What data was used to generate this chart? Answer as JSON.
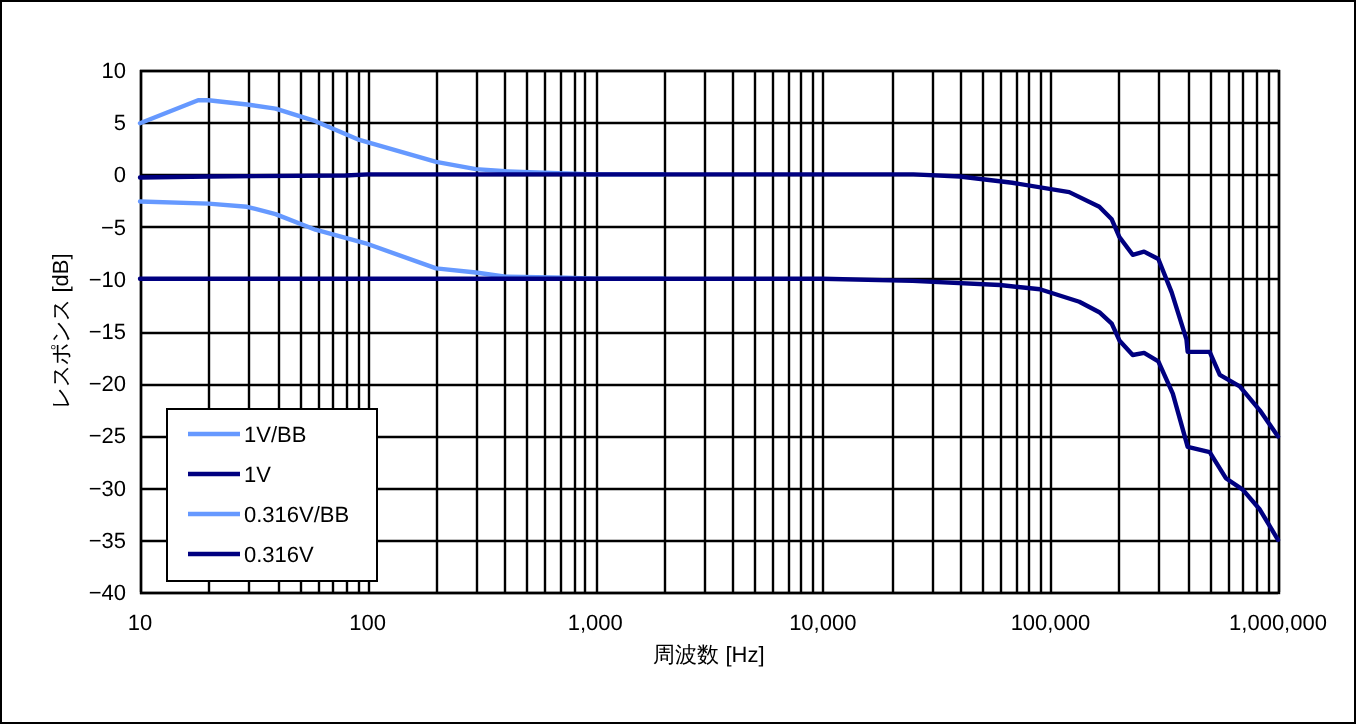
{
  "chart_data": {
    "type": "line",
    "xlabel": "周波数 [Hz]",
    "ylabel": "レスポンス [dB]",
    "log": "x",
    "grid": true,
    "legend": "bottom left",
    "line_style": "solid",
    "marker": "none",
    "xlim": [
      10,
      1000000
    ],
    "ylim": [
      -40,
      10
    ],
    "xticks": [
      10,
      100,
      {
        "value": 1000,
        "label": "1,000"
      },
      {
        "value": 10000,
        "label": "10,000"
      },
      {
        "value": 100000,
        "label": "100,000"
      },
      {
        "value": 1000000,
        "label": "1,000,000"
      }
    ],
    "yticks": [
      -40,
      -35,
      -30,
      -25,
      -20,
      -15,
      -10,
      -5,
      0,
      5,
      10
    ],
    "series": [
      {
        "name": "1V/BB",
        "color": "#6699ff",
        "x": [
          10,
          18,
          20,
          29.5,
          39.4,
          59,
          92,
          200,
          299,
          404,
          740,
          1000,
          2000
        ],
        "values": [
          4.9,
          7.1,
          7.1,
          6.7,
          6.3,
          5.1,
          3.3,
          1.2,
          0.5,
          0.3,
          0.1,
          0,
          0
        ]
      },
      {
        "name": "1V",
        "color": "#000080",
        "x": [
          10,
          20,
          80,
          100,
          1000,
          10000,
          25000,
          40000,
          68000,
          121000,
          164000,
          186000,
          201000,
          230000,
          258000,
          298000,
          341000,
          396000,
          401000,
          501000,
          555000,
          679000,
          832000,
          1000000
        ],
        "values": [
          -0.3,
          -0.2,
          -0.1,
          0,
          0,
          0,
          0,
          -0.2,
          -0.8,
          -1.7,
          -3.1,
          -4.3,
          -6.0,
          -7.7,
          -7.4,
          -8.1,
          -11.3,
          -15.8,
          -17.0,
          -17.0,
          -19.2,
          -20.3,
          -22.6,
          -25.1
        ]
      },
      {
        "name": "0.316V/BB",
        "color": "#6699ff",
        "x": [
          10,
          20,
          29.5,
          39.4,
          59,
          98,
          200,
          299,
          404,
          740,
          1000,
          2000
        ],
        "values": [
          -2.6,
          -2.8,
          -3.1,
          -3.8,
          -5.3,
          -6.6,
          -9.0,
          -9.4,
          -9.8,
          -9.9,
          -10,
          -10
        ]
      },
      {
        "name": "0.316V",
        "color": "#000080",
        "x": [
          10,
          100,
          1000,
          10000,
          24800,
          60000,
          90000,
          134000,
          164000,
          186000,
          201000,
          230000,
          258000,
          298000,
          345000,
          401000,
          501000,
          590000,
          700000,
          832000,
          1000000
        ],
        "values": [
          -10,
          -10,
          -10,
          -10,
          -10.2,
          -10.6,
          -11,
          -12.2,
          -13.2,
          -14.3,
          -15.9,
          -17.3,
          -17.1,
          -17.9,
          -21.0,
          -26.1,
          -26.6,
          -29.1,
          -30.2,
          -32.1,
          -35.0
        ]
      }
    ]
  }
}
